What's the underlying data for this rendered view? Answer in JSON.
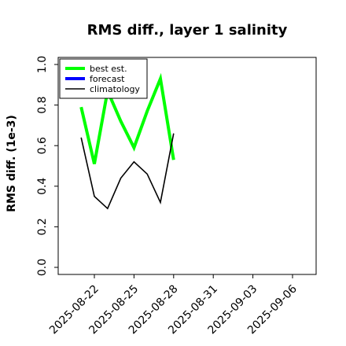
{
  "chart_data": {
    "type": "line",
    "title": "RMS diff., layer 1 salinity",
    "ylabel": "RMS diff. (1e-3)",
    "xlabel": "",
    "ylim": [
      0,
      1.0
    ],
    "yticks": [
      "0.0",
      "0.2",
      "0.4",
      "0.6",
      "0.8",
      "1.0"
    ],
    "x_range": [
      "2025-08-19",
      "2025-09-07"
    ],
    "xticks": [
      {
        "label": "2025-08-22",
        "date": "2025-08-22",
        "color": "#000000"
      },
      {
        "label": "2025-08-25",
        "date": "2025-08-25",
        "color": "#000000"
      },
      {
        "label": "2025-08-28",
        "date": "2025-08-28",
        "color": "#228b22"
      },
      {
        "label": "2025-08-31",
        "date": "2025-08-31",
        "color": "#000000"
      },
      {
        "label": "2025-09-03",
        "date": "2025-09-03",
        "color": "#000000"
      },
      {
        "label": "2025-09-06",
        "date": "2025-09-06",
        "color": "#000000"
      }
    ],
    "legend_position": "top-left",
    "grid": false,
    "series": [
      {
        "name": "best est.",
        "color": "#00ff00",
        "x": [
          "2025-08-21",
          "2025-08-22",
          "2025-08-23",
          "2025-08-24",
          "2025-08-25",
          "2025-08-26",
          "2025-08-27",
          "2025-08-28"
        ],
        "values": [
          0.79,
          0.51,
          0.87,
          0.72,
          0.59,
          0.77,
          0.93,
          0.53
        ]
      },
      {
        "name": "forecast",
        "color": "#0000ff",
        "x": [],
        "values": []
      },
      {
        "name": "climatology",
        "color": "#000000",
        "x": [
          "2025-08-21",
          "2025-08-22",
          "2025-08-23",
          "2025-08-24",
          "2025-08-25",
          "2025-08-26",
          "2025-08-27",
          "2025-08-28"
        ],
        "values": [
          0.64,
          0.35,
          0.29,
          0.44,
          0.52,
          0.46,
          0.32,
          0.66
        ]
      }
    ]
  }
}
